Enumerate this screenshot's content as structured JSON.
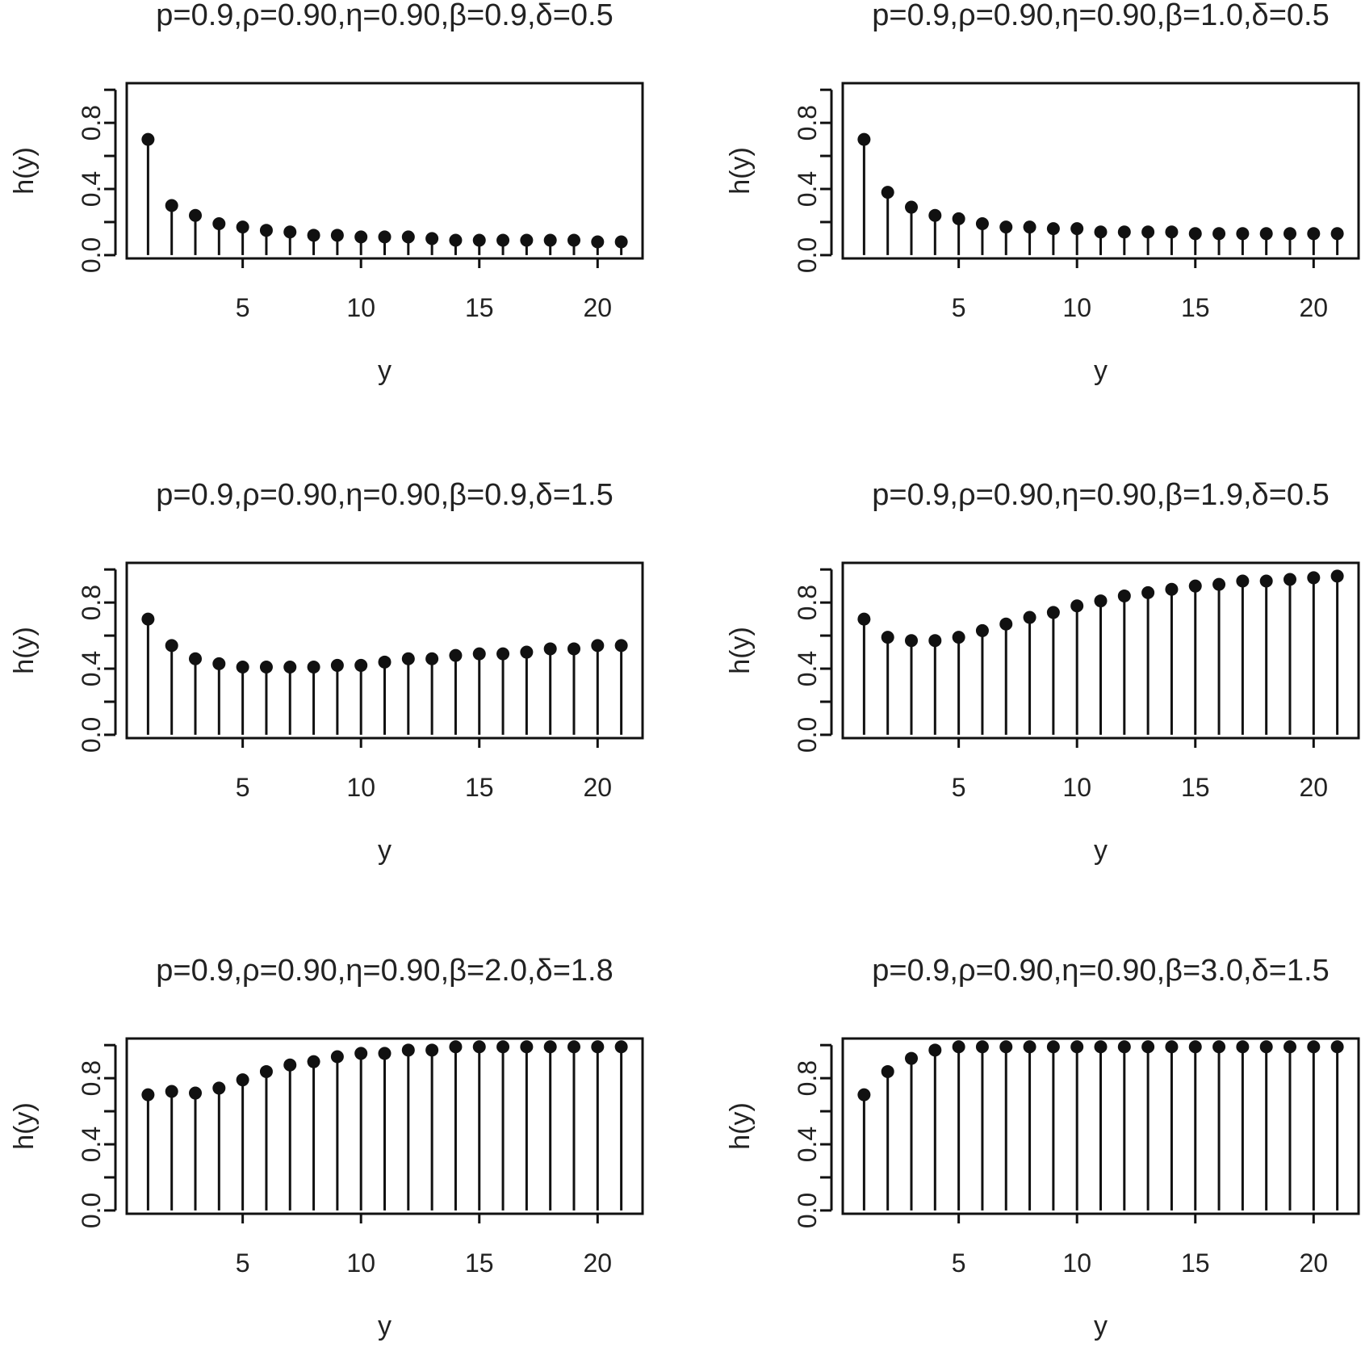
{
  "chart_data": [
    {
      "type": "stem",
      "title": "p=0.9,ρ=0.90,η=0.90,β=0.9,δ=0.5",
      "xlabel": "y",
      "ylabel": "h(y)",
      "xlim": [
        0.1,
        21.9
      ],
      "ylim": [
        -0.02,
        1.04
      ],
      "xticks": [
        5,
        10,
        15,
        20
      ],
      "yticks": [
        0.0,
        0.2,
        0.4,
        0.6,
        0.8,
        1.0
      ],
      "yticklabels": [
        "0.0",
        "",
        "0.4",
        "",
        "0.8",
        ""
      ],
      "x": [
        1,
        2,
        3,
        4,
        5,
        6,
        7,
        8,
        9,
        10,
        11,
        12,
        13,
        14,
        15,
        16,
        17,
        18,
        19,
        20,
        21
      ],
      "values": [
        0.7,
        0.3,
        0.24,
        0.19,
        0.17,
        0.15,
        0.14,
        0.12,
        0.12,
        0.11,
        0.11,
        0.11,
        0.1,
        0.09,
        0.09,
        0.09,
        0.09,
        0.09,
        0.09,
        0.08,
        0.08
      ]
    },
    {
      "type": "stem",
      "title": "p=0.9,ρ=0.90,η=0.90,β=1.0,δ=0.5",
      "xlabel": "y",
      "ylabel": "h(y)",
      "xlim": [
        0.1,
        21.9
      ],
      "ylim": [
        -0.02,
        1.04
      ],
      "xticks": [
        5,
        10,
        15,
        20
      ],
      "yticks": [
        0.0,
        0.2,
        0.4,
        0.6,
        0.8,
        1.0
      ],
      "yticklabels": [
        "0.0",
        "",
        "0.4",
        "",
        "0.8",
        ""
      ],
      "x": [
        1,
        2,
        3,
        4,
        5,
        6,
        7,
        8,
        9,
        10,
        11,
        12,
        13,
        14,
        15,
        16,
        17,
        18,
        19,
        20,
        21
      ],
      "values": [
        0.7,
        0.38,
        0.29,
        0.24,
        0.22,
        0.19,
        0.17,
        0.17,
        0.16,
        0.16,
        0.14,
        0.14,
        0.14,
        0.14,
        0.13,
        0.13,
        0.13,
        0.13,
        0.13,
        0.13,
        0.13
      ]
    },
    {
      "type": "stem",
      "title": "p=0.9,ρ=0.90,η=0.90,β=0.9,δ=1.5",
      "xlabel": "y",
      "ylabel": "h(y)",
      "xlim": [
        0.1,
        21.9
      ],
      "ylim": [
        -0.02,
        1.04
      ],
      "xticks": [
        5,
        10,
        15,
        20
      ],
      "yticks": [
        0.0,
        0.2,
        0.4,
        0.6,
        0.8,
        1.0
      ],
      "yticklabels": [
        "0.0",
        "",
        "0.4",
        "",
        "0.8",
        ""
      ],
      "x": [
        1,
        2,
        3,
        4,
        5,
        6,
        7,
        8,
        9,
        10,
        11,
        12,
        13,
        14,
        15,
        16,
        17,
        18,
        19,
        20,
        21
      ],
      "values": [
        0.7,
        0.54,
        0.46,
        0.43,
        0.41,
        0.41,
        0.41,
        0.41,
        0.42,
        0.42,
        0.44,
        0.46,
        0.46,
        0.48,
        0.49,
        0.49,
        0.5,
        0.52,
        0.52,
        0.54,
        0.54
      ]
    },
    {
      "type": "stem",
      "title": "p=0.9,ρ=0.90,η=0.90,β=1.9,δ=0.5",
      "xlabel": "y",
      "ylabel": "h(y)",
      "xlim": [
        0.1,
        21.9
      ],
      "ylim": [
        -0.02,
        1.04
      ],
      "xticks": [
        5,
        10,
        15,
        20
      ],
      "yticks": [
        0.0,
        0.2,
        0.4,
        0.6,
        0.8,
        1.0
      ],
      "yticklabels": [
        "0.0",
        "",
        "0.4",
        "",
        "0.8",
        ""
      ],
      "x": [
        1,
        2,
        3,
        4,
        5,
        6,
        7,
        8,
        9,
        10,
        11,
        12,
        13,
        14,
        15,
        16,
        17,
        18,
        19,
        20,
        21
      ],
      "values": [
        0.7,
        0.59,
        0.57,
        0.57,
        0.59,
        0.63,
        0.67,
        0.71,
        0.74,
        0.78,
        0.81,
        0.84,
        0.86,
        0.88,
        0.9,
        0.91,
        0.93,
        0.93,
        0.94,
        0.95,
        0.96
      ]
    },
    {
      "type": "stem",
      "title": "p=0.9,ρ=0.90,η=0.90,β=2.0,δ=1.8",
      "xlabel": "y",
      "ylabel": "h(y)",
      "xlim": [
        0.1,
        21.9
      ],
      "ylim": [
        -0.02,
        1.04
      ],
      "xticks": [
        5,
        10,
        15,
        20
      ],
      "yticks": [
        0.0,
        0.2,
        0.4,
        0.6,
        0.8,
        1.0
      ],
      "yticklabels": [
        "0.0",
        "",
        "0.4",
        "",
        "0.8",
        ""
      ],
      "x": [
        1,
        2,
        3,
        4,
        5,
        6,
        7,
        8,
        9,
        10,
        11,
        12,
        13,
        14,
        15,
        16,
        17,
        18,
        19,
        20,
        21
      ],
      "values": [
        0.7,
        0.72,
        0.71,
        0.74,
        0.79,
        0.84,
        0.88,
        0.9,
        0.93,
        0.95,
        0.95,
        0.97,
        0.97,
        0.99,
        0.99,
        0.99,
        0.99,
        0.99,
        0.99,
        0.99,
        0.99
      ]
    },
    {
      "type": "stem",
      "title": "p=0.9,ρ=0.90,η=0.90,β=3.0,δ=1.5",
      "xlabel": "y",
      "ylabel": "h(y)",
      "xlim": [
        0.1,
        21.9
      ],
      "ylim": [
        -0.02,
        1.04
      ],
      "xticks": [
        5,
        10,
        15,
        20
      ],
      "yticks": [
        0.0,
        0.2,
        0.4,
        0.6,
        0.8,
        1.0
      ],
      "yticklabels": [
        "0.0",
        "",
        "0.4",
        "",
        "0.8",
        ""
      ],
      "x": [
        1,
        2,
        3,
        4,
        5,
        6,
        7,
        8,
        9,
        10,
        11,
        12,
        13,
        14,
        15,
        16,
        17,
        18,
        19,
        20,
        21
      ],
      "values": [
        0.7,
        0.84,
        0.92,
        0.97,
        0.99,
        0.99,
        0.99,
        0.99,
        0.99,
        0.99,
        0.99,
        0.99,
        0.99,
        0.99,
        0.99,
        0.99,
        0.99,
        0.99,
        0.99,
        0.99,
        0.99
      ]
    }
  ]
}
